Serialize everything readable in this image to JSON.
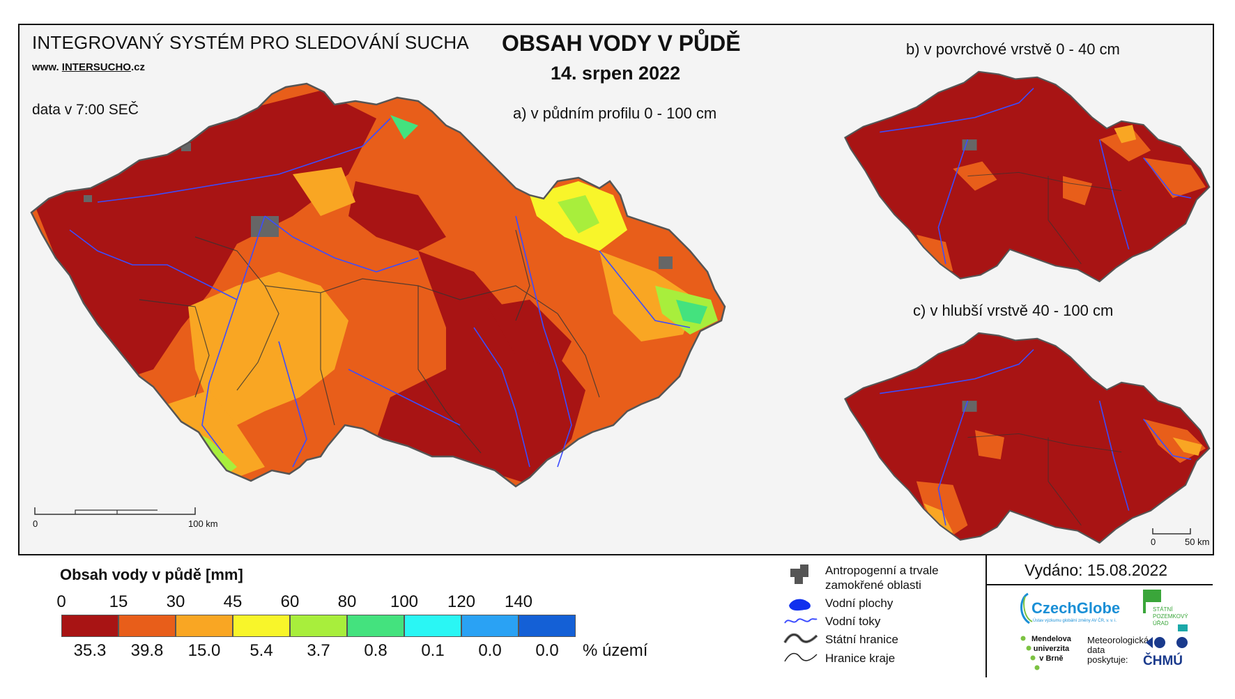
{
  "header": {
    "system_title": "INTEGROVANÝ SYSTÉM PRO SLEDOVÁNÍ SUCHA",
    "website_prefix": "www. ",
    "website_main": "INTERSUCHO",
    "website_suffix": ".cz",
    "data_time": "data v 7:00 SEČ",
    "main_title": "OBSAH VODY V PŮDĚ",
    "date": "14. srpen 2022"
  },
  "maps": {
    "a_label": "a) v půdním profilu 0 - 100 cm",
    "b_label": "b) v povrchové vrstvě 0 - 40 cm",
    "c_label": "c) v hlubší vrstvě 40 - 100 cm",
    "scale_main": {
      "start": "0",
      "end": "100 km"
    },
    "scale_small": {
      "start": "0",
      "end": "50 km"
    }
  },
  "legend": {
    "title": "Obsah vody v půdě  [mm]",
    "ticks": [
      "0",
      "15",
      "30",
      "45",
      "60",
      "80",
      "100",
      "120",
      "140"
    ],
    "classes": [
      {
        "color": "#a81414",
        "pct": "35.3"
      },
      {
        "color": "#e85e1a",
        "pct": "39.8"
      },
      {
        "color": "#f9a623",
        "pct": "15.0"
      },
      {
        "color": "#f8f52a",
        "pct": "5.4"
      },
      {
        "color": "#a8ee3c",
        "pct": "3.7"
      },
      {
        "color": "#44e27e",
        "pct": "0.8"
      },
      {
        "color": "#2af6f4",
        "pct": "0.1"
      },
      {
        "color": "#2aa2f4",
        "pct": "0.0"
      },
      {
        "color": "#1460d6",
        "pct": "0.0"
      }
    ],
    "pct_label": "% území"
  },
  "symbols": [
    {
      "icon": "anthropogenic-area-icon",
      "label": "Antropogenní a trvale zamokřené oblasti"
    },
    {
      "icon": "water-body-icon",
      "label": "Vodní plochy"
    },
    {
      "icon": "river-icon",
      "label": "Vodní toky"
    },
    {
      "icon": "state-border-icon",
      "label": "Státní hranice"
    },
    {
      "icon": "region-border-icon",
      "label": "Hranice kraje"
    }
  ],
  "issued": "Vydáno: 15.08.2022",
  "logos": {
    "czechglobe": "CzechGlobe",
    "czechglobe_sub": "Ústav výzkumu globální změny AV ČR, v. v. i.",
    "spu_line1": "STÁTNÍ",
    "spu_line2": "POZEMKOVÝ",
    "spu_line3": "ÚŘAD",
    "mendel_line1": "Mendelova",
    "mendel_line2": "univerzita",
    "mendel_line3": "v Brně",
    "meteo_line1": "Meteorologická",
    "meteo_line2": "data",
    "meteo_line3": "poskytuje:",
    "chmu": "ČHMÚ"
  },
  "colors": {
    "dark_red": "#a81414",
    "orange": "#e85e1a",
    "light_orange": "#f9a623",
    "yellow": "#f8f52a",
    "light_green": "#a8ee3c",
    "river": "#3c4cff"
  }
}
